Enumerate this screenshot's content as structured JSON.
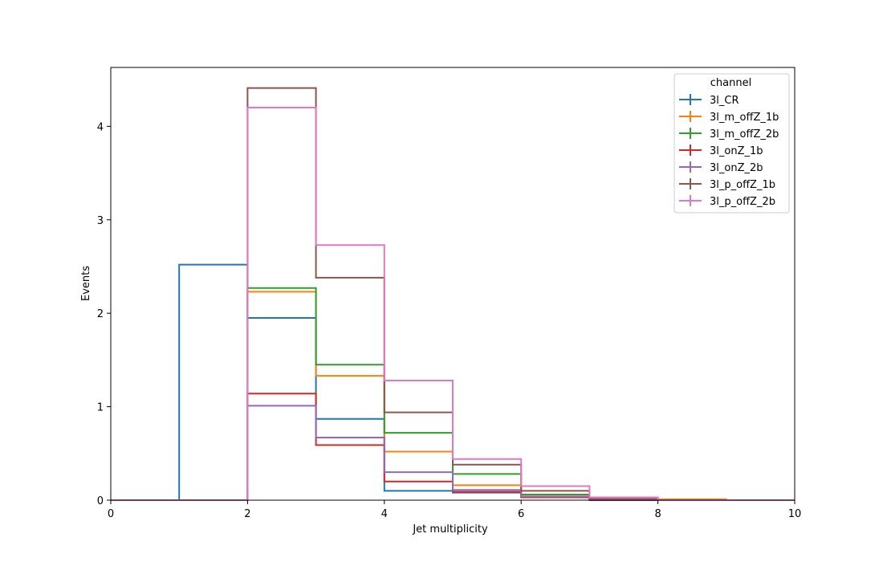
{
  "chart_data": {
    "type": "step-histogram",
    "xlabel": "Jet multiplicity",
    "ylabel": "Events",
    "xlim": [
      0,
      10
    ],
    "ylim": [
      0,
      4.63
    ],
    "x_ticks": [
      0,
      2,
      4,
      6,
      8,
      10
    ],
    "y_ticks": [
      0,
      1,
      2,
      3,
      4
    ],
    "bin_edges": [
      0,
      1,
      2,
      3,
      4,
      5,
      6,
      7,
      8,
      9,
      10
    ],
    "grid": false,
    "legend": {
      "title": "channel",
      "placement": "top-right"
    },
    "series": [
      {
        "name": "3l_CR",
        "color": "#1f77b4",
        "values": [
          0,
          2.52,
          1.95,
          0.87,
          0.1,
          0.08,
          0.03,
          0.01,
          0.0,
          0.0
        ]
      },
      {
        "name": "3l_m_offZ_1b",
        "color": "#ff7f0e",
        "values": [
          0,
          0,
          2.23,
          1.33,
          0.52,
          0.16,
          0.04,
          0.01,
          0.01,
          0.0
        ]
      },
      {
        "name": "3l_m_offZ_2b",
        "color": "#2ca02c",
        "values": [
          0,
          0,
          2.27,
          1.45,
          0.72,
          0.28,
          0.06,
          0.01,
          0.0,
          0.0
        ]
      },
      {
        "name": "3l_onZ_1b",
        "color": "#d62728",
        "values": [
          0,
          0,
          1.14,
          0.59,
          0.2,
          0.09,
          0.03,
          0.0,
          0.0,
          0.0
        ]
      },
      {
        "name": "3l_onZ_2b",
        "color": "#9467bd",
        "values": [
          0,
          0,
          1.01,
          0.67,
          0.3,
          0.11,
          0.04,
          0.01,
          0.0,
          0.0
        ]
      },
      {
        "name": "3l_p_offZ_1b",
        "color": "#8c564b",
        "values": [
          0,
          0,
          4.41,
          2.38,
          0.94,
          0.38,
          0.1,
          0.02,
          0.0,
          0.0
        ]
      },
      {
        "name": "3l_p_offZ_2b",
        "color": "#e377c2",
        "values": [
          0,
          0,
          4.2,
          2.73,
          1.28,
          0.44,
          0.15,
          0.03,
          0.0,
          0.0
        ]
      }
    ]
  }
}
